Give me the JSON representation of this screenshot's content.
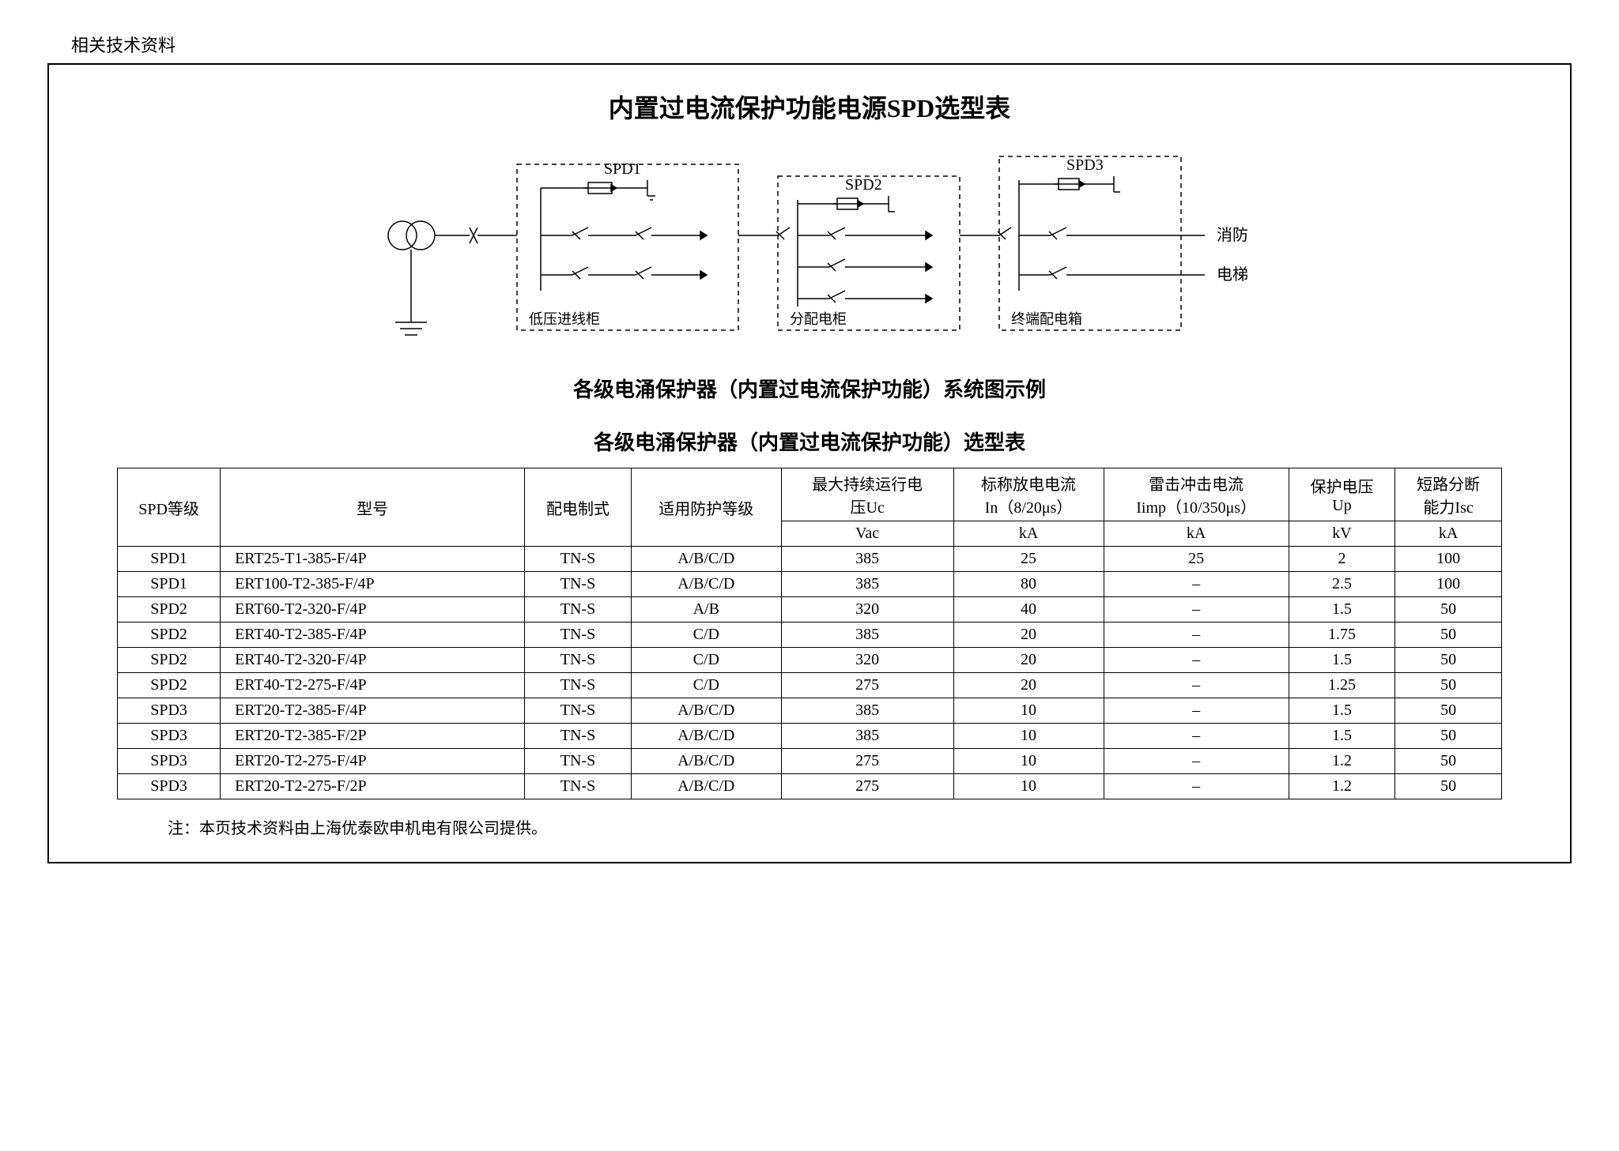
{
  "header_label": "相关技术资料",
  "page_title": "内置过电流保护功能电源SPD选型表",
  "diagram": {
    "spd1": "SPD1",
    "spd2": "SPD2",
    "spd3": "SPD3",
    "box1": "低压进线柜",
    "box2": "分配电柜",
    "box3": "终端配电箱",
    "out1": "消防",
    "out2": "电梯"
  },
  "diagram_caption": "各级电涌保护器（内置过电流保护功能）系统图示例",
  "table_title": "各级电涌保护器（内置过电流保护功能）选型表",
  "table": {
    "headers": {
      "c1": "SPD等级",
      "c2": "型号",
      "c3": "配电制式",
      "c4": "适用防护等级",
      "c5a": "最大持续运行电",
      "c5b": "压Uc",
      "c6a": "标称放电电流",
      "c6b": "In（8/20μs）",
      "c7a": "雷击冲击电流",
      "c7b": "Iimp（10/350μs）",
      "c8a": "保护电压",
      "c8b": "Up",
      "c9a": "短路分断",
      "c9b": "能力Isc",
      "u5": "Vac",
      "u6": "kA",
      "u7": "kA",
      "u8": "kV",
      "u9": "kA"
    },
    "rows": [
      {
        "lvl": "SPD1",
        "model": "ERT25-T1-385-F/4P",
        "sys": "TN-S",
        "prot": "A/B/C/D",
        "uc": "385",
        "in": "25",
        "iimp": "25",
        "up": "2",
        "isc": "100"
      },
      {
        "lvl": "SPD1",
        "model": "ERT100-T2-385-F/4P",
        "sys": "TN-S",
        "prot": "A/B/C/D",
        "uc": "385",
        "in": "80",
        "iimp": "–",
        "up": "2.5",
        "isc": "100"
      },
      {
        "lvl": "SPD2",
        "model": "ERT60-T2-320-F/4P",
        "sys": "TN-S",
        "prot": "A/B",
        "uc": "320",
        "in": "40",
        "iimp": "–",
        "up": "1.5",
        "isc": "50"
      },
      {
        "lvl": "SPD2",
        "model": "ERT40-T2-385-F/4P",
        "sys": "TN-S",
        "prot": "C/D",
        "uc": "385",
        "in": "20",
        "iimp": "–",
        "up": "1.75",
        "isc": "50"
      },
      {
        "lvl": "SPD2",
        "model": "ERT40-T2-320-F/4P",
        "sys": "TN-S",
        "prot": "C/D",
        "uc": "320",
        "in": "20",
        "iimp": "–",
        "up": "1.5",
        "isc": "50"
      },
      {
        "lvl": "SPD2",
        "model": "ERT40-T2-275-F/4P",
        "sys": "TN-S",
        "prot": "C/D",
        "uc": "275",
        "in": "20",
        "iimp": "–",
        "up": "1.25",
        "isc": "50"
      },
      {
        "lvl": "SPD3",
        "model": "ERT20-T2-385-F/4P",
        "sys": "TN-S",
        "prot": "A/B/C/D",
        "uc": "385",
        "in": "10",
        "iimp": "–",
        "up": "1.5",
        "isc": "50"
      },
      {
        "lvl": "SPD3",
        "model": "ERT20-T2-385-F/2P",
        "sys": "TN-S",
        "prot": "A/B/C/D",
        "uc": "385",
        "in": "10",
        "iimp": "–",
        "up": "1.5",
        "isc": "50"
      },
      {
        "lvl": "SPD3",
        "model": "ERT20-T2-275-F/4P",
        "sys": "TN-S",
        "prot": "A/B/C/D",
        "uc": "275",
        "in": "10",
        "iimp": "–",
        "up": "1.2",
        "isc": "50"
      },
      {
        "lvl": "SPD3",
        "model": "ERT20-T2-275-F/2P",
        "sys": "TN-S",
        "prot": "A/B/C/D",
        "uc": "275",
        "in": "10",
        "iimp": "–",
        "up": "1.2",
        "isc": "50"
      }
    ]
  },
  "footnote": "注：本页技术资料由上海优泰欧申机电有限公司提供。",
  "colors": {
    "border": "#000000",
    "text": "#000000",
    "bg": "#ffffff"
  }
}
